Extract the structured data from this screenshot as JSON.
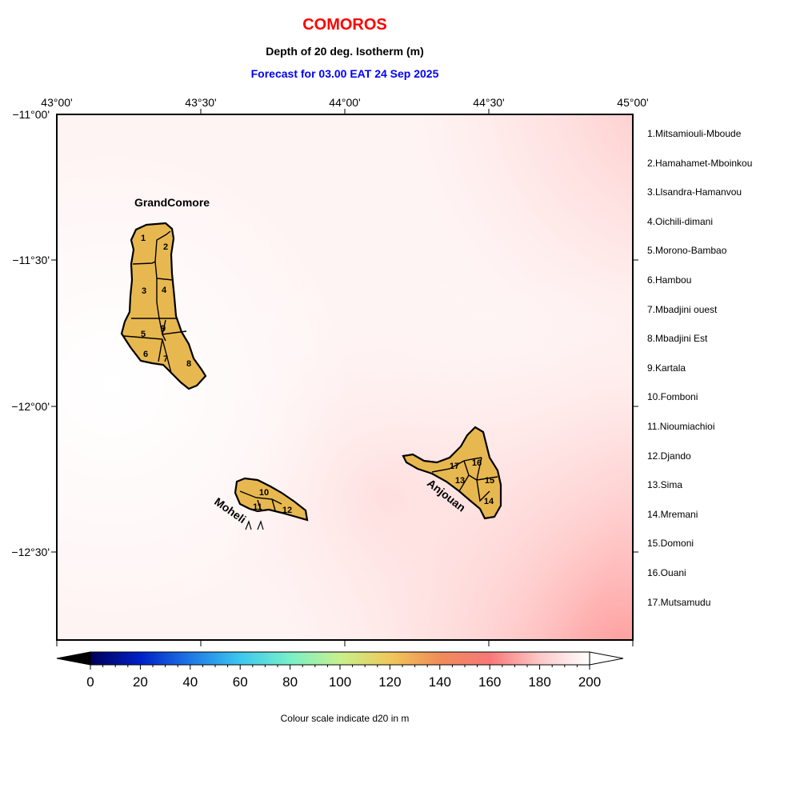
{
  "header": {
    "country": "COMOROS",
    "subtitle": "Depth of 20 deg. Isotherm (m)",
    "forecast": "Forecast for  03.00 EAT 24 Sep 2025",
    "country_color": "#ff0000",
    "subtitle_color": "#000000",
    "forecast_color": "#0000ff"
  },
  "axes": {
    "lon_labels": [
      "43°00'",
      "43°30'",
      "44°00'",
      "44°30'",
      "45°00'"
    ],
    "lat_labels": [
      "−11°00'",
      "−11°30'",
      "−12°00'",
      "−12°30'"
    ],
    "lon_range": [
      43.0,
      45.0
    ],
    "lat_range": [
      -12.8,
      -11.0
    ]
  },
  "islands": [
    {
      "name": "GrandComore",
      "label": "GrandComore"
    },
    {
      "name": "Moheli",
      "label": "Moheli"
    },
    {
      "name": "Anjouan",
      "label": "Anjouan"
    }
  ],
  "region_numbers": [
    "1",
    "2",
    "3",
    "4",
    "5",
    "6",
    "7",
    "8",
    "9",
    "10",
    "11",
    "12",
    "13",
    "14",
    "15",
    "16",
    "17"
  ],
  "regions": [
    "1.Mitsamiouli-Mboude",
    "2.Hamahamet-Mboinkou",
    "3.Llsandra-Hamanvou",
    "4.Oichili-dimani",
    "5.Morono-Bambao",
    "6.Hambou",
    "7.Mbadjini ouest",
    "8.Mbadjini Est",
    "9.Kartala",
    "10.Fomboni",
    "11.Nioumiachioi",
    "12.Djando",
    "13.Sima",
    "14.Mremani",
    "15.Domoni",
    "16.Ouani",
    "17.Mutsamudu"
  ],
  "colorbar": {
    "ticks": [
      "0",
      "20",
      "40",
      "60",
      "80",
      "100",
      "120",
      "140",
      "160",
      "180",
      "200"
    ],
    "min": 0,
    "max": 200,
    "note": "Colour scale indicate d20 in m",
    "colors": [
      "#00005a",
      "#0020c8",
      "#1e78e6",
      "#3cc8f0",
      "#78f0c8",
      "#c8f08c",
      "#f0c85a",
      "#f08c5a",
      "#f87878",
      "#fcc8c8",
      "#ffffff"
    ]
  },
  "land_color": "#e8b850",
  "field_colors": {
    "white": "#ffffff",
    "pink": "#ffa8a8"
  }
}
